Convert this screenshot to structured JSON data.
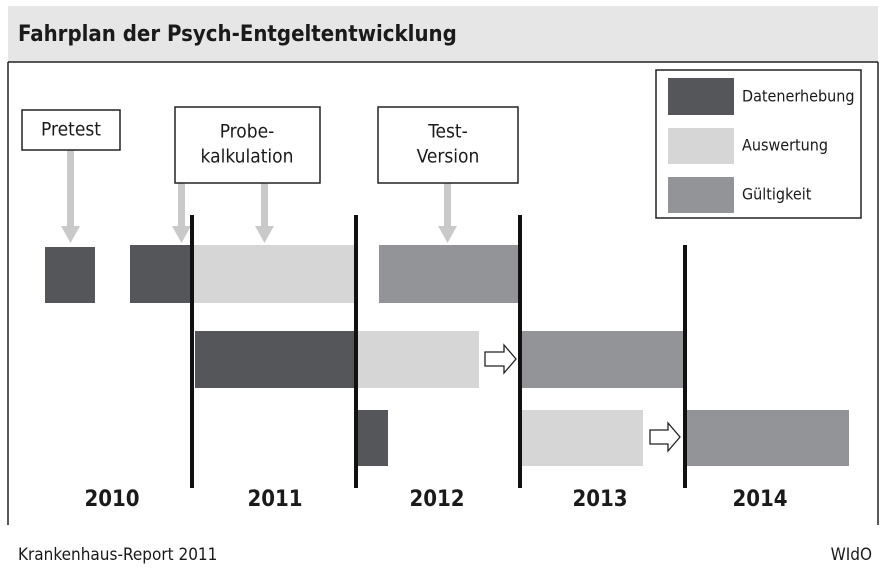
{
  "title": "Fahrplan der Psych-Entgeltentwicklung",
  "callouts": [
    {
      "lines": [
        "Pretest"
      ]
    },
    {
      "lines": [
        "Probe-",
        "kalkulation"
      ]
    },
    {
      "lines": [
        "Test-",
        "Version"
      ]
    }
  ],
  "legend": [
    "Datenerhebung",
    "Auswertung",
    "Gültigkeit"
  ],
  "years": [
    "2010",
    "2011",
    "2012",
    "2013",
    "2014"
  ],
  "footer": {
    "source": "Krankenhaus-Report 2011",
    "publisher": "WIdO"
  }
}
